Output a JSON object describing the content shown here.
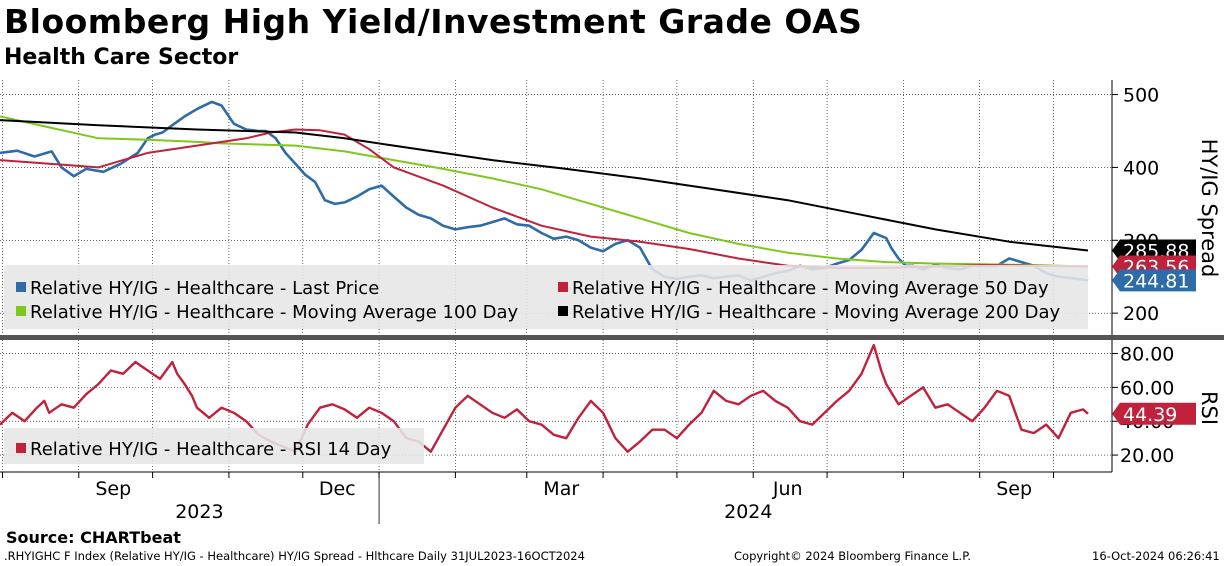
{
  "header": {
    "title": "Bloomberg High Yield/Investment Grade OAS",
    "subtitle": "Health Care Sector"
  },
  "source": "Source: CHARTbeat",
  "footer": {
    "ticker": ".RHYIGHC F Index (Relative HY/IG - Healthcare) HY/IG Spread - Hlthcare  Daily 31JUL2023-16OCT2024",
    "copyright": "Copyright© 2024 Bloomberg Finance L.P.",
    "timestamp": "16-Oct-2024 06:26:41"
  },
  "colors": {
    "last_price": "#2e6ca8",
    "ma50": "#c0213b",
    "ma100": "#7dc81b",
    "ma200": "#000000",
    "rsi": "#c0213b"
  },
  "chart_data": [
    {
      "type": "line",
      "title": "Bloomberg High Yield/Investment Grade OAS",
      "ylabel": "HY/IG Spread",
      "ylim": [
        170,
        520
      ],
      "yticks": [
        200,
        300,
        400,
        500
      ],
      "grid": true,
      "legend_position": "bottom-left",
      "x_months": [
        {
          "label": "Sep",
          "year": 2023,
          "month": 9
        },
        {
          "label": "Dec",
          "year": 2023,
          "month": 12
        },
        {
          "label": "Mar",
          "year": 2024,
          "month": 3
        },
        {
          "label": "Jun",
          "year": 2024,
          "month": 6
        },
        {
          "label": "Sep",
          "year": 2024,
          "month": 9
        }
      ],
      "x_years": [
        "2023",
        "2024"
      ],
      "x_range_days": [
        0,
        442
      ],
      "series": [
        {
          "name": "Relative HY/IG - Healthcare - Last Price",
          "legend": "Relative HY/IG - Healthcare - Last Price",
          "last_value": "244.81",
          "x": [
            0,
            7,
            14,
            21,
            25,
            30,
            35,
            42,
            49,
            56,
            60,
            63,
            66,
            70,
            75,
            80,
            86,
            90,
            95,
            100,
            105,
            108,
            112,
            116,
            120,
            124,
            128,
            132,
            136,
            140,
            145,
            150,
            155,
            160,
            165,
            170,
            175,
            180,
            185,
            190,
            195,
            200,
            205,
            210,
            215,
            220,
            225,
            230,
            235,
            240,
            245,
            250,
            255,
            260,
            265,
            270,
            275,
            280,
            285,
            290,
            295,
            300,
            305,
            310,
            315,
            320,
            325,
            330,
            335,
            340,
            345,
            350,
            355,
            360,
            362,
            365,
            368,
            371,
            375,
            380,
            385,
            390,
            395,
            400,
            405,
            410,
            415,
            420,
            425,
            430,
            435,
            440,
            442
          ],
          "values": [
            420,
            423,
            415,
            422,
            400,
            388,
            398,
            394,
            405,
            420,
            440,
            445,
            448,
            458,
            470,
            480,
            490,
            485,
            460,
            452,
            450,
            450,
            440,
            420,
            405,
            390,
            380,
            355,
            350,
            352,
            360,
            370,
            375,
            360,
            345,
            335,
            330,
            320,
            315,
            318,
            320,
            325,
            330,
            322,
            320,
            310,
            302,
            305,
            300,
            290,
            285,
            295,
            300,
            290,
            260,
            250,
            247,
            250,
            252,
            248,
            250,
            252,
            245,
            250,
            255,
            258,
            265,
            260,
            262,
            268,
            273,
            287,
            310,
            303,
            290,
            275,
            265,
            265,
            260,
            266,
            262,
            260,
            265,
            265,
            265,
            275,
            270,
            265,
            255,
            250,
            248,
            246,
            245
          ]
        },
        {
          "name": "Relative HY/IG - Healthcare - Moving Average 50 Day",
          "legend": "Relative HY/IG - Healthcare - Moving Average 50 Day",
          "last_value": "263.56",
          "x": [
            0,
            20,
            40,
            50,
            60,
            80,
            100,
            110,
            120,
            130,
            140,
            150,
            160,
            180,
            200,
            220,
            240,
            260,
            280,
            300,
            320,
            340,
            360,
            380,
            400,
            420,
            442
          ],
          "values": [
            410,
            405,
            400,
            410,
            420,
            430,
            440,
            448,
            452,
            451,
            445,
            425,
            400,
            375,
            345,
            320,
            305,
            298,
            288,
            275,
            265,
            262,
            262,
            264,
            266,
            265,
            264
          ]
        },
        {
          "name": "Relative HY/IG - Healthcare - Moving Average 100 Day",
          "legend": "Relative HY/IG - Healthcare - Moving Average 100 Day",
          "last_value": "",
          "x": [
            0,
            20,
            40,
            60,
            80,
            90,
            100,
            120,
            140,
            160,
            180,
            200,
            220,
            240,
            260,
            280,
            300,
            320,
            340,
            360,
            380,
            400,
            420,
            442
          ],
          "values": [
            470,
            455,
            440,
            438,
            435,
            433,
            432,
            430,
            422,
            410,
            398,
            385,
            370,
            350,
            330,
            310,
            295,
            283,
            275,
            270,
            268,
            267,
            266,
            264
          ]
        },
        {
          "name": "Relative HY/IG - Healthcare - Moving Average 200 Day",
          "legend": "Relative HY/IG - Healthcare - Moving Average 200 Day",
          "last_value": "285.88",
          "x": [
            0,
            40,
            80,
            100,
            120,
            140,
            160,
            180,
            200,
            230,
            260,
            290,
            320,
            350,
            380,
            410,
            442
          ],
          "values": [
            465,
            458,
            452,
            450,
            448,
            440,
            430,
            420,
            410,
            398,
            385,
            370,
            355,
            335,
            315,
            298,
            286
          ]
        }
      ]
    },
    {
      "type": "line",
      "ylabel": "RSI",
      "ylim": [
        10,
        88
      ],
      "yticks": [
        20,
        40,
        60,
        80
      ],
      "ytick_labels": [
        "20.00",
        "40.00",
        "60.00",
        "80.00"
      ],
      "grid": true,
      "legend_position": "bottom-left",
      "series": [
        {
          "name": "Relative HY/IG - Healthcare - RSI 14 Day",
          "legend": "Relative HY/IG - Healthcare - RSI 14 Day",
          "last_value": "44.39",
          "x": [
            0,
            5,
            10,
            15,
            18,
            20,
            25,
            30,
            35,
            40,
            45,
            50,
            55,
            58,
            60,
            65,
            70,
            72,
            75,
            78,
            80,
            85,
            90,
            95,
            100,
            105,
            110,
            115,
            120,
            125,
            130,
            135,
            140,
            145,
            150,
            155,
            160,
            165,
            170,
            175,
            180,
            185,
            190,
            195,
            200,
            205,
            210,
            215,
            220,
            225,
            230,
            235,
            240,
            245,
            250,
            255,
            260,
            265,
            270,
            275,
            280,
            285,
            290,
            295,
            300,
            305,
            310,
            315,
            320,
            325,
            330,
            335,
            340,
            345,
            350,
            355,
            358,
            360,
            365,
            370,
            375,
            380,
            385,
            390,
            395,
            400,
            405,
            410,
            415,
            420,
            425,
            430,
            435,
            440,
            442
          ],
          "values": [
            38,
            45,
            40,
            48,
            52,
            45,
            50,
            48,
            56,
            62,
            70,
            68,
            75,
            72,
            70,
            65,
            75,
            68,
            62,
            55,
            48,
            42,
            48,
            45,
            40,
            32,
            28,
            25,
            22,
            38,
            48,
            50,
            47,
            42,
            48,
            45,
            40,
            30,
            28,
            22,
            35,
            48,
            55,
            50,
            45,
            42,
            47,
            40,
            38,
            32,
            30,
            42,
            52,
            45,
            30,
            22,
            28,
            35,
            35,
            30,
            38,
            45,
            58,
            52,
            50,
            55,
            58,
            52,
            48,
            40,
            38,
            45,
            52,
            58,
            68,
            85,
            70,
            62,
            50,
            55,
            60,
            48,
            50,
            45,
            40,
            48,
            58,
            55,
            35,
            33,
            38,
            30,
            45,
            47,
            44.4
          ]
        }
      ]
    }
  ]
}
